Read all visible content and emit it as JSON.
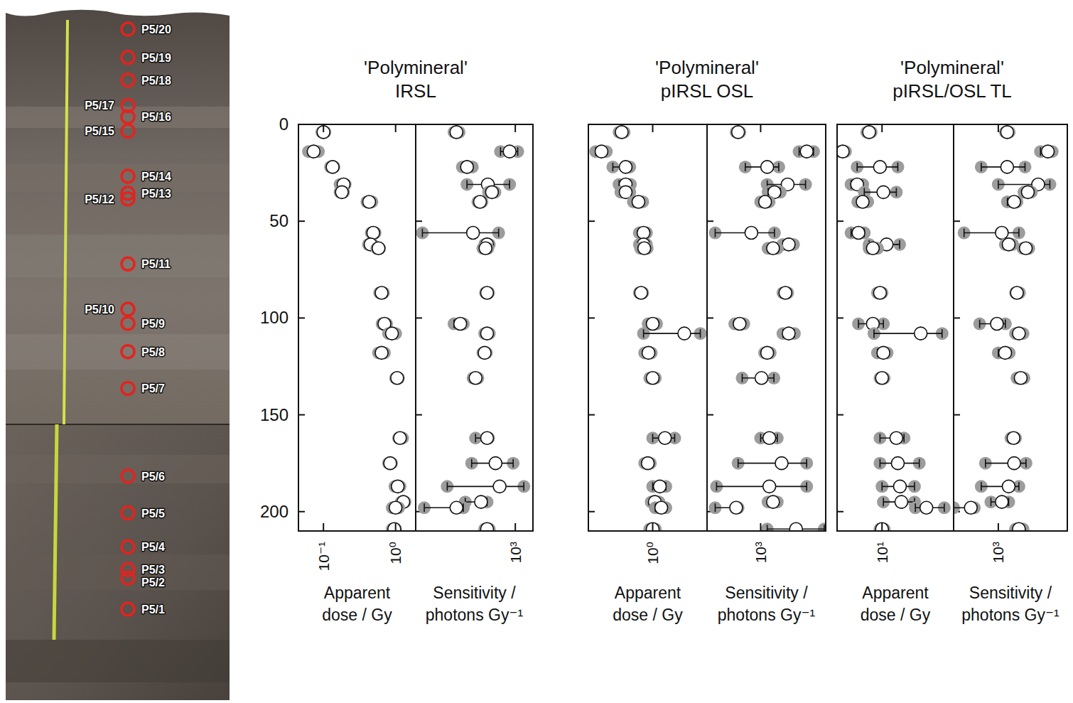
{
  "profile": {
    "samples": [
      "P5/20",
      "P5/19",
      "P5/18",
      "P5/17",
      "P5/16",
      "P5/15",
      "P5/14",
      "P5/13",
      "P5/12",
      "P5/11",
      "P5/10",
      "P5/9",
      "P5/8",
      "P5/7",
      "P5/6",
      "P5/5",
      "P5/4",
      "P5/3",
      "P5/2",
      "P5/1"
    ],
    "depths": [
      4,
      14,
      22,
      31,
      35,
      40,
      56,
      62,
      64,
      87,
      103,
      108,
      118,
      131,
      162,
      175,
      187,
      195,
      198,
      209
    ]
  },
  "chart_data": [
    {
      "type": "scatter",
      "title": "'Polymineral'",
      "subtitle": "IRSL",
      "ylim": [
        0,
        210
      ],
      "yticks": [
        0,
        50,
        100,
        150,
        200
      ],
      "panels": [
        {
          "xlabel": "Apparent dose / Gy",
          "log": "x",
          "xlim": [
            0.045,
            1.9
          ],
          "xticks": [
            {
              "value": 0.1,
              "label": "10⁻¹"
            },
            {
              "value": 1,
              "label": "10⁰"
            }
          ],
          "values": [
            0.1,
            0.073,
            0.134,
            0.19,
            0.18,
            0.43,
            0.49,
            0.45,
            0.58,
            0.64,
            0.7,
            0.89,
            0.64,
            1.05,
            1.15,
            0.84,
            1.07,
            1.28,
            1.0,
            0.96
          ],
          "low": [
            0.095,
            0.062,
            0.125,
            0.17,
            0.17,
            0.4,
            0.46,
            0.42,
            0.55,
            0.6,
            0.65,
            0.8,
            0.58,
            1.0,
            1.1,
            0.8,
            0.98,
            1.2,
            0.9,
            0.9
          ],
          "high": [
            0.105,
            0.085,
            0.14,
            0.2,
            0.19,
            0.47,
            0.52,
            0.48,
            0.6,
            0.68,
            0.75,
            1.0,
            0.7,
            1.1,
            1.25,
            0.88,
            1.15,
            1.35,
            1.1,
            1.0
          ]
        },
        {
          "xlabel": "Sensitivity / photons Gy⁻¹",
          "log": "x",
          "xlim": [
            20,
            2000
          ],
          "xticks": [
            {
              "value": 1000,
              "label": "10³"
            }
          ],
          "values": [
            99,
            800,
            150,
            340,
            400,
            250,
            190,
            330,
            310,
            330,
            115,
            330,
            300,
            210,
            330,
            460,
            540,
            260,
            99,
            330
          ],
          "low": [
            90,
            560,
            125,
            150,
            350,
            230,
            26,
            300,
            280,
            310,
            90,
            300,
            280,
            190,
            210,
            180,
            69,
            140,
            28,
            300
          ],
          "high": [
            110,
            1100,
            185,
            800,
            450,
            270,
            520,
            360,
            340,
            350,
            130,
            360,
            320,
            230,
            350,
            920,
            1400,
            330,
            130,
            360
          ]
        }
      ]
    },
    {
      "type": "scatter",
      "title": "'Polymineral'",
      "subtitle": "pIRSL OSL",
      "ylim": [
        0,
        210
      ],
      "yticks": [
        0,
        50,
        100,
        150,
        200
      ],
      "tick_labels": "x",
      "panels": [
        {
          "xlabel": "Apparent dose / Gy",
          "log": "x",
          "xlim": [
            0.1,
            7
          ],
          "xticks": [
            {
              "value": 1,
              "label": "10⁰"
            }
          ],
          "values": [
            0.33,
            0.16,
            0.38,
            0.38,
            0.38,
            0.6,
            0.72,
            0.72,
            0.74,
            0.66,
            1.0,
            3.1,
            0.86,
            1.0,
            1.55,
            0.84,
            1.29,
            1.08,
            1.36,
            1.0
          ],
          "low": [
            0.3,
            0.13,
            0.24,
            0.3,
            0.32,
            0.5,
            0.62,
            0.62,
            0.65,
            0.62,
            0.85,
            0.72,
            0.75,
            0.9,
            1.0,
            0.75,
            1.0,
            0.95,
            1.1,
            0.9
          ],
          "high": [
            0.36,
            0.19,
            0.44,
            0.45,
            0.44,
            0.7,
            0.8,
            0.8,
            0.82,
            0.7,
            1.15,
            5.5,
            0.95,
            1.1,
            2.2,
            0.92,
            1.6,
            1.25,
            1.6,
            1.1
          ]
        },
        {
          "xlabel": "Sensitivity / photons Gy⁻¹",
          "log": "x",
          "xlim": [
            150,
            10000
          ],
          "xticks": [
            {
              "value": 1000,
              "label": "10³"
            }
          ],
          "values": [
            450,
            5100,
            1260,
            2600,
            1630,
            1170,
            720,
            2700,
            1550,
            2400,
            475,
            2700,
            1260,
            1030,
            1360,
            2100,
            1360,
            1550,
            420,
            3500
          ],
          "low": [
            420,
            3900,
            580,
            1260,
            1300,
            1000,
            200,
            2200,
            1300,
            2200,
            400,
            2200,
            1150,
            520,
            1000,
            450,
            210,
            1300,
            200,
            1260
          ],
          "high": [
            480,
            6500,
            1900,
            4900,
            2000,
            1350,
            1630,
            3200,
            1800,
            2600,
            550,
            3300,
            1400,
            1600,
            1800,
            5100,
            5100,
            1800,
            450,
            9500
          ]
        }
      ]
    },
    {
      "type": "scatter",
      "title": "'Polymineral'",
      "subtitle": "pIRSL/OSL TL",
      "ylim": [
        0,
        210
      ],
      "yticks": [
        0,
        50,
        100,
        150,
        200
      ],
      "tick_labels": "x",
      "panels": [
        {
          "xlabel": "Apparent dose / Gy",
          "log": "x",
          "xlim": [
            2,
            130
          ],
          "xticks": [
            {
              "value": 10,
              "label": "10¹"
            }
          ],
          "values": [
            6.3,
            2.45,
            9.3,
            4.1,
            10.5,
            5.0,
            4.3,
            11.8,
            7.2,
            9.3,
            7.2,
            40,
            10.5,
            10,
            16.7,
            17.6,
            19,
            20,
            49,
            10
          ],
          "low": [
            5.8,
            2.2,
            4.1,
            3.3,
            5.3,
            4.2,
            3.3,
            6.3,
            6.3,
            8.5,
            4.3,
            7.5,
            8.5,
            9.3,
            9.3,
            9.3,
            10,
            10.5,
            33,
            9.3
          ],
          "high": [
            6.8,
            2.7,
            17.6,
            5,
            16.7,
            6,
            5.3,
            18.8,
            8.5,
            10,
            10.5,
            86,
            12,
            10.8,
            22,
            38,
            32,
            32,
            93,
            10.8
          ]
        },
        {
          "xlabel": "Sensitivity / photons Gy⁻¹",
          "log": "x",
          "xlim": [
            190,
            13000
          ],
          "xticks": [
            {
              "value": 1000,
              "label": "10³"
            }
          ],
          "values": [
            1390,
            6300,
            1390,
            4400,
            3000,
            1800,
            1140,
            1470,
            2780,
            2000,
            950,
            2150,
            1290,
            2300,
            1760,
            1800,
            1470,
            1140,
            360,
            2150
          ],
          "low": [
            1300,
            4800,
            530,
            1000,
            2600,
            1400,
            280,
            1300,
            2500,
            1900,
            500,
            1900,
            1000,
            2000,
            1600,
            620,
            530,
            760,
            190,
            1900
          ],
          "high": [
            1500,
            7400,
            2700,
            6800,
            3400,
            2000,
            2150,
            1700,
            3100,
            2200,
            1300,
            2500,
            1500,
            2600,
            1900,
            2800,
            2150,
            1470,
            410,
            2500
          ]
        }
      ]
    }
  ]
}
